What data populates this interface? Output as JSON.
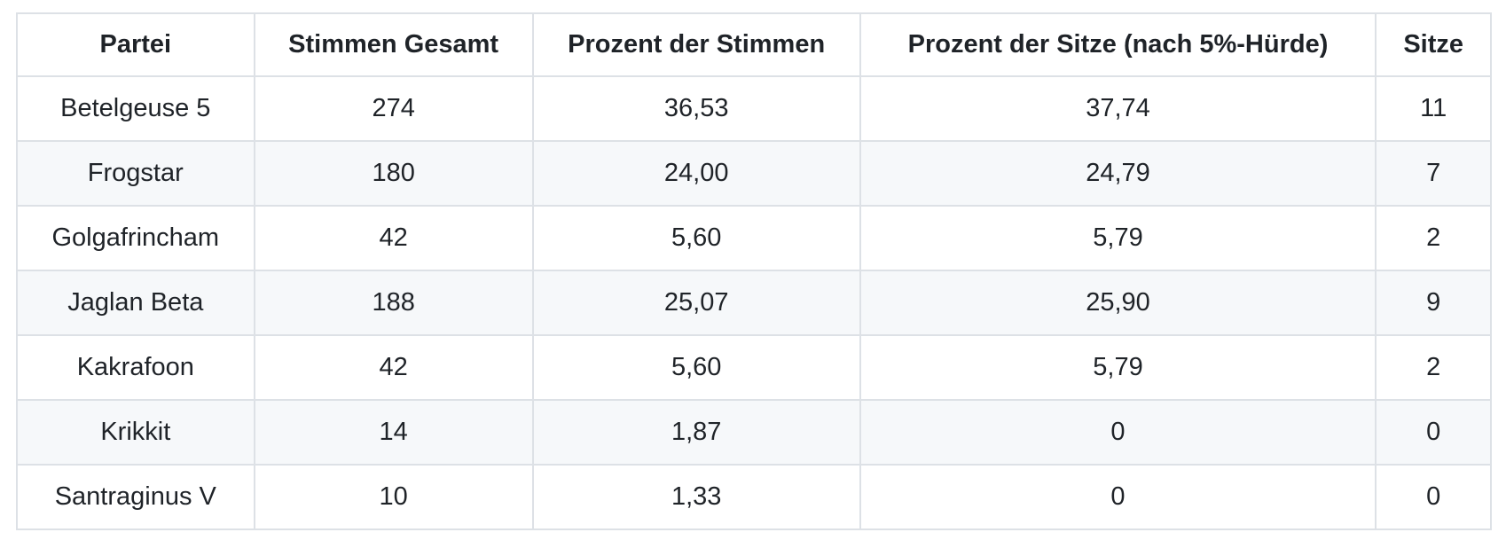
{
  "colors": {
    "text": "#1f2328",
    "border": "#dde1e6",
    "stripe": "#f6f8fa",
    "row_background": "#ffffff"
  },
  "chart_data": {
    "type": "table",
    "columns": [
      "Partei",
      "Stimmen Gesamt",
      "Prozent der Stimmen",
      "Prozent der Sitze (nach 5%-Hürde)",
      "Sitze"
    ],
    "rows": [
      [
        "Betelgeuse 5",
        "274",
        "36,53",
        "37,74",
        "11"
      ],
      [
        "Frogstar",
        "180",
        "24,00",
        "24,79",
        "7"
      ],
      [
        "Golgafrincham",
        "42",
        "5,60",
        "5,79",
        "2"
      ],
      [
        "Jaglan Beta",
        "188",
        "25,07",
        "25,90",
        "9"
      ],
      [
        "Kakrafoon",
        "42",
        "5,60",
        "5,79",
        "2"
      ],
      [
        "Krikkit",
        "14",
        "1,87",
        "0",
        "0"
      ],
      [
        "Santraginus V",
        "10",
        "1,33",
        "0",
        "0"
      ]
    ],
    "alignment": "center",
    "striped_rows": "even",
    "grid": true,
    "legend": "none"
  }
}
